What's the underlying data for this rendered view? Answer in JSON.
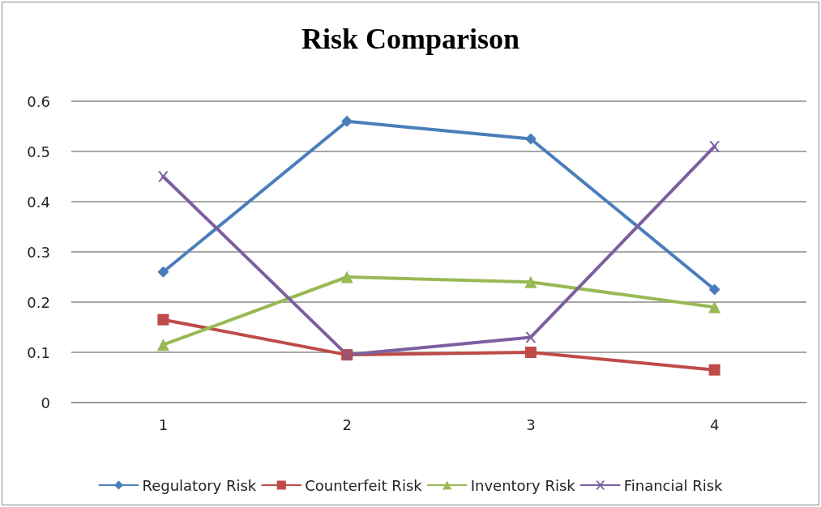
{
  "chart_data": {
    "type": "line",
    "title": "Risk Comparison",
    "categories": [
      "1",
      "2",
      "3",
      "4"
    ],
    "ylim": [
      0,
      0.6
    ],
    "yticks": [
      0,
      0.1,
      0.2,
      0.3,
      0.4,
      0.5,
      0.6
    ],
    "grid": "y",
    "legend": "bottom",
    "line_style": "solid",
    "series": [
      {
        "name": "Regulatory Risk",
        "color": "#4a7ebb",
        "marker": "diamond",
        "values": [
          0.26,
          0.56,
          0.525,
          0.225
        ]
      },
      {
        "name": "Counterfeit Risk",
        "color": "#be4b48",
        "marker": "square",
        "values": [
          0.165,
          0.095,
          0.1,
          0.065
        ]
      },
      {
        "name": "Inventory Risk",
        "color": "#98b954",
        "marker": "triangle",
        "values": [
          0.115,
          0.25,
          0.24,
          0.19
        ]
      },
      {
        "name": "Financial Risk",
        "color": "#7d5fa0",
        "marker": "cross",
        "values": [
          0.45,
          0.095,
          0.13,
          0.51
        ]
      }
    ]
  }
}
